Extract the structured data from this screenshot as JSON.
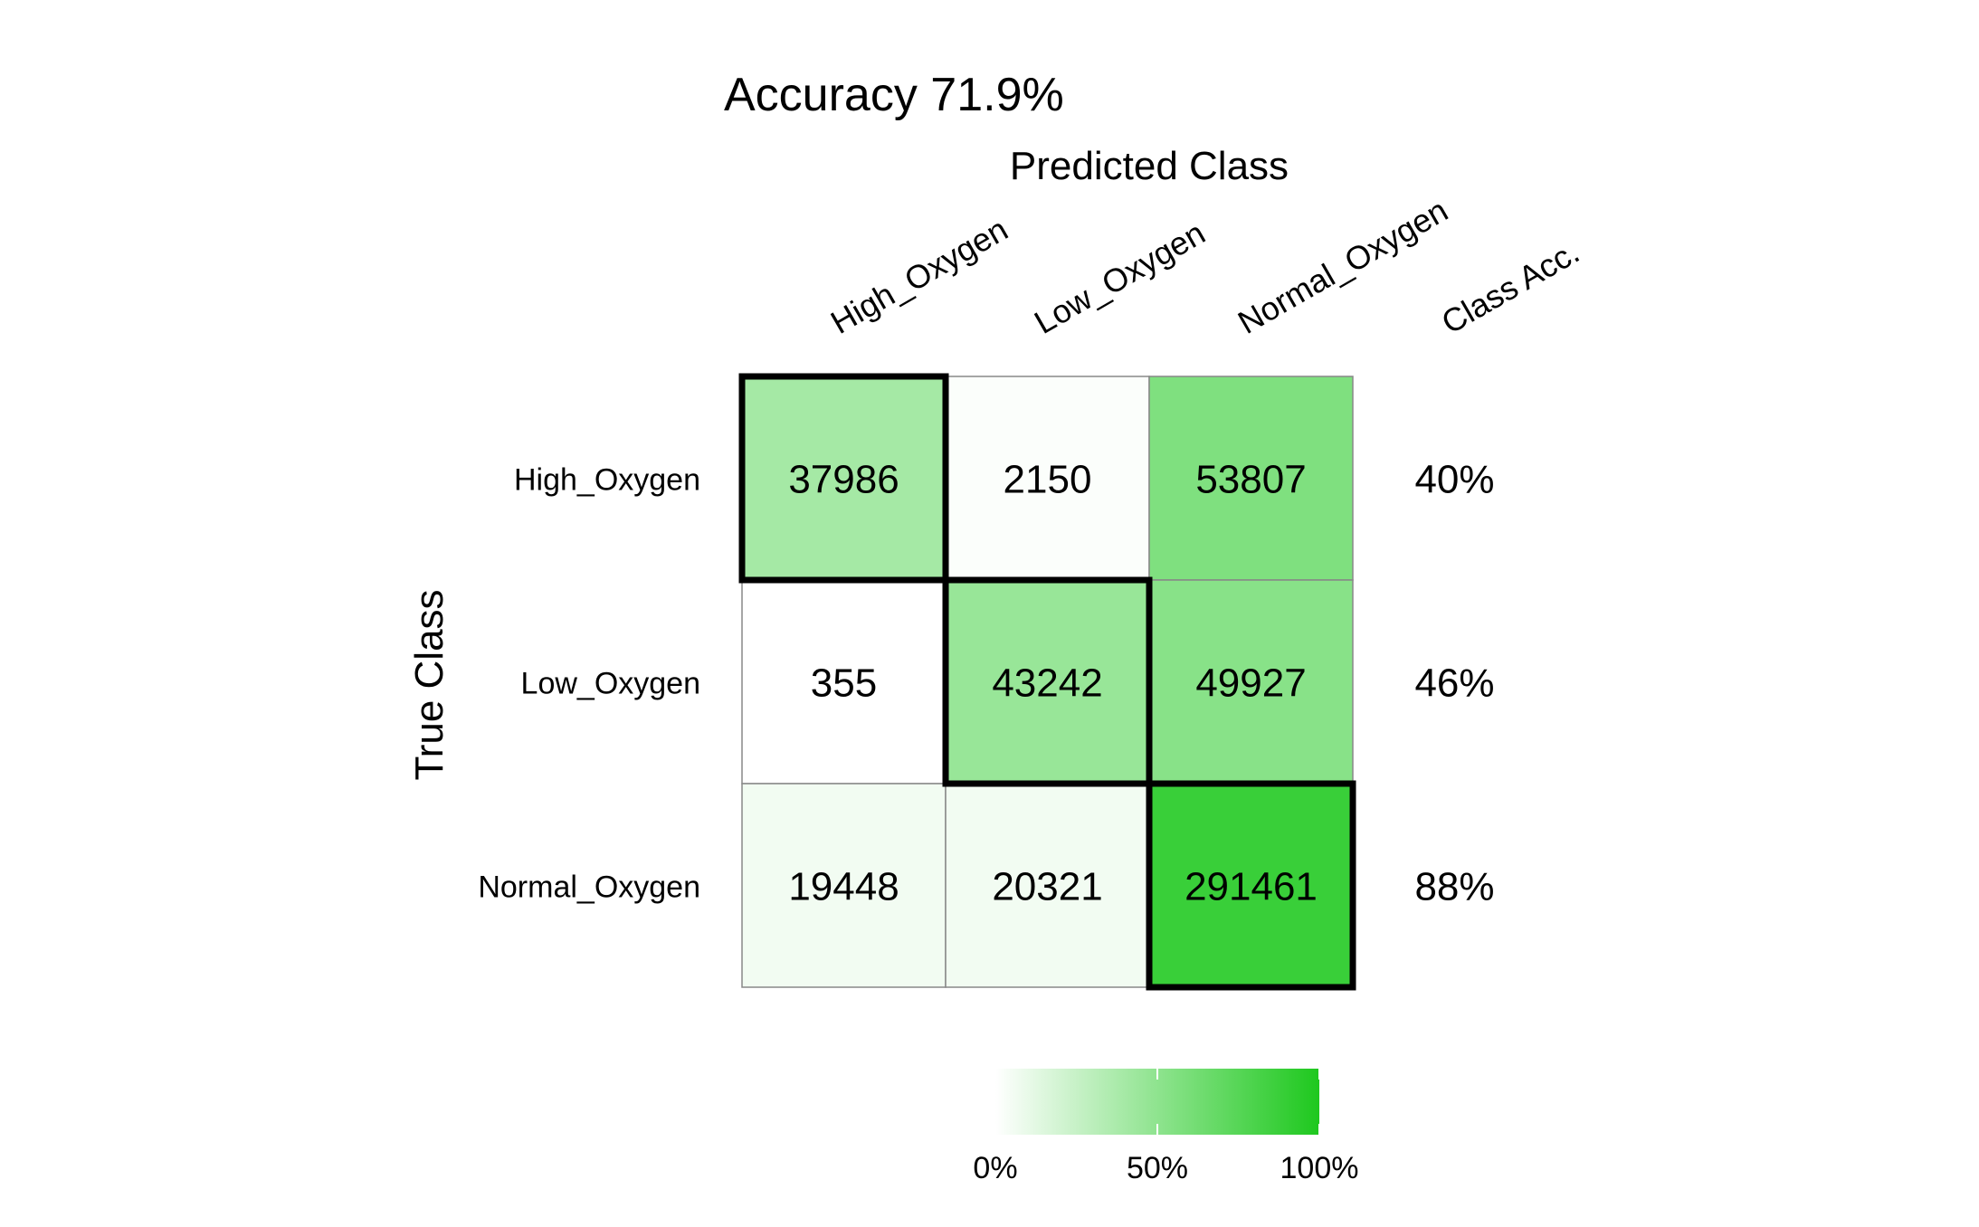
{
  "chart_data": {
    "type": "heatmap",
    "title": "Accuracy 71.9%",
    "xlabel": "Predicted Class",
    "ylabel": "True Class",
    "x_categories": [
      "High_Oxygen",
      "Low_Oxygen",
      "Normal_Oxygen"
    ],
    "y_categories": [
      "High_Oxygen",
      "Low_Oxygen",
      "Normal_Oxygen"
    ],
    "matrix": [
      [
        37986,
        2150,
        53807
      ],
      [
        355,
        43242,
        49927
      ],
      [
        19448,
        20321,
        291461
      ]
    ],
    "row_fraction": [
      [
        0.4,
        0.02,
        0.57
      ],
      [
        0.0,
        0.46,
        0.53
      ],
      [
        0.06,
        0.06,
        0.88
      ]
    ],
    "class_acc_header": "Class Acc.",
    "class_acc": [
      "40%",
      "46%",
      "88%"
    ],
    "colorbar": {
      "ticks": [
        "0%",
        "50%",
        "100%"
      ],
      "low_color": "#ffffff",
      "high_color": "#1ec81e"
    },
    "highlight": "diagonal",
    "grid": true
  }
}
